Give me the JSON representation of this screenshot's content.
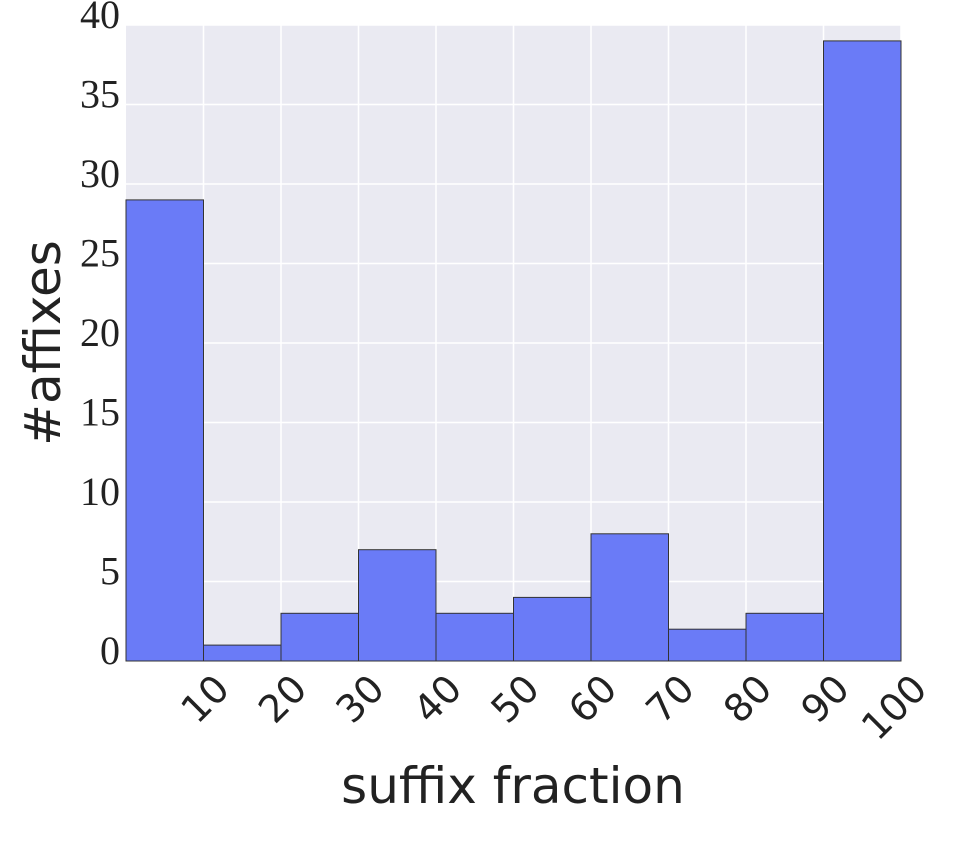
{
  "chart_data": {
    "type": "histogram",
    "x_label": "suffix fraction",
    "y_label": "#affixes",
    "bins": [
      0,
      10,
      20,
      30,
      40,
      50,
      60,
      70,
      80,
      90,
      100
    ],
    "values": [
      29,
      1,
      3,
      7,
      3,
      4,
      8,
      2,
      3,
      39
    ],
    "color": "#6a7bf7",
    "xlim": [
      0,
      100
    ],
    "xticks": [
      10,
      20,
      30,
      40,
      50,
      60,
      70,
      80,
      90,
      100
    ],
    "ylim": [
      0,
      40
    ],
    "yticks": [
      0,
      5,
      10,
      15,
      20,
      25,
      30,
      35,
      40
    ],
    "grid": true
  }
}
